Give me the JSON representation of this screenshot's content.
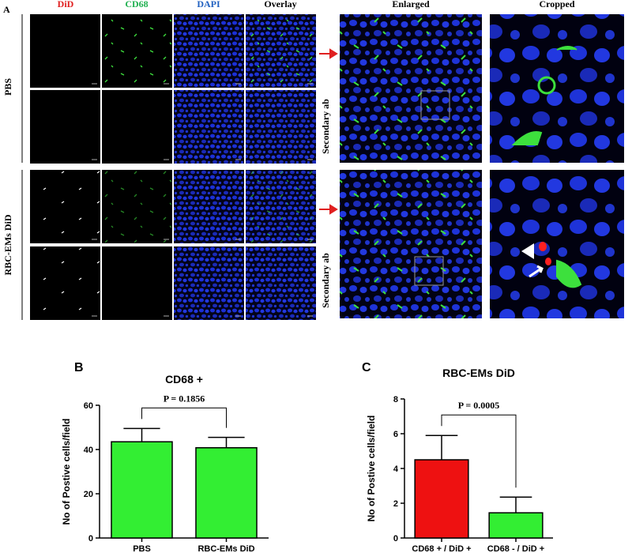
{
  "panel_a": {
    "label": "A",
    "column_headers": [
      "DiD",
      "CD68",
      "DAPI",
      "Overlay",
      "Enlarged",
      "Cropped"
    ],
    "row_labels": [
      "PBS",
      "RBC-EMs DiD"
    ],
    "secondary_labels": [
      "Secondary ab",
      "Secondary ab"
    ]
  },
  "chart_data": [
    {
      "type": "bar",
      "panel_label": "B",
      "title": "CD68 +",
      "ylabel": "No of Postive cells/field",
      "categories": [
        "PBS",
        "RBC-EMs DiD"
      ],
      "values": [
        43.5,
        40.8
      ],
      "errors": [
        6.0,
        4.7
      ],
      "colors": [
        "#33ee33",
        "#33ee33"
      ],
      "ylim": [
        0,
        60
      ],
      "yticks": [
        0,
        20,
        40,
        60
      ],
      "annotation": "P = 0.1856"
    },
    {
      "type": "bar",
      "panel_label": "C",
      "title": "RBC-EMs DiD",
      "ylabel": "No of Postive cells/field",
      "categories": [
        "CD68 + / DiD +",
        "CD68 - / DiD +"
      ],
      "values": [
        4.5,
        1.45
      ],
      "errors": [
        1.4,
        0.9
      ],
      "colors": [
        "#ee1111",
        "#33ee33"
      ],
      "ylim": [
        0,
        8
      ],
      "yticks": [
        0,
        2,
        4,
        6,
        8
      ],
      "annotation": "P = 0.0005"
    }
  ]
}
